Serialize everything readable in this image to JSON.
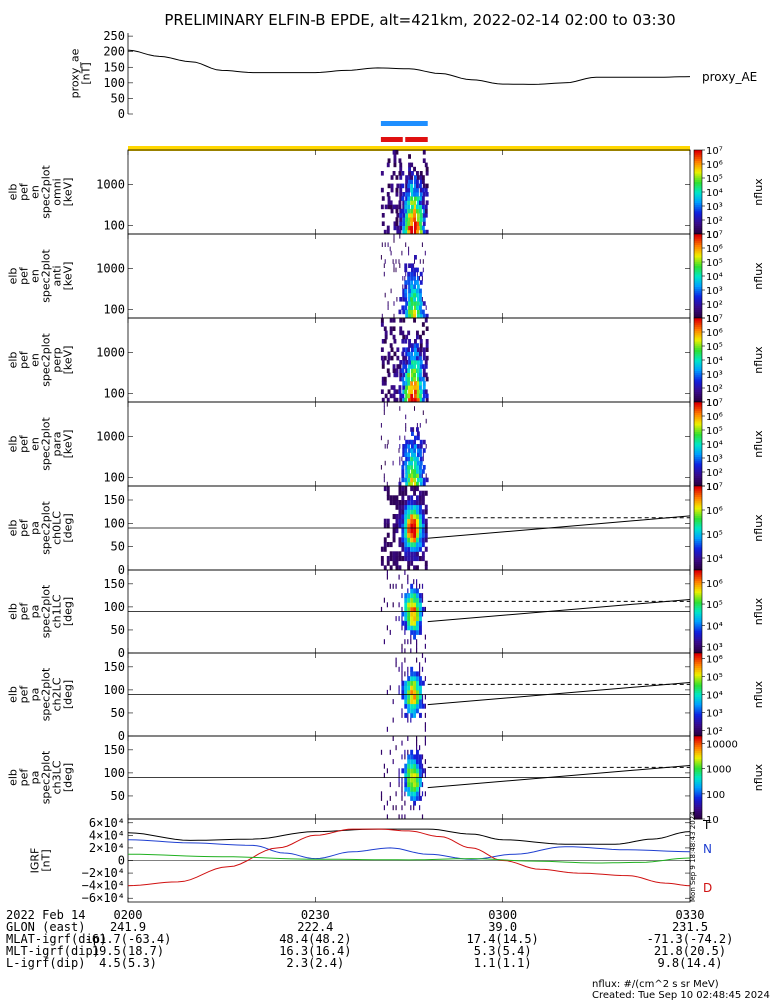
{
  "title": "PRELIMINARY ELFIN-B EPDE, alt=421km, 2022-02-14 02:00 to 03:30",
  "colors": {
    "blue_bar": "#1f8fff",
    "red_bar": "#e01010",
    "yellow_bar": "#ffd700",
    "bx": "#1f3fd0",
    "by": "#20b020",
    "bz": "#d01010"
  },
  "chart_data": [
    {
      "type": "line",
      "id": "proxy_ae",
      "ylabel": [
        "proxy_ae",
        "[nT]"
      ],
      "legend": "proxy_AE",
      "ylim": [
        0,
        260
      ],
      "yticks": [
        0,
        50,
        100,
        150,
        200,
        250
      ],
      "x_minutes": [
        0,
        5,
        10,
        15,
        20,
        25,
        30,
        35,
        40,
        45,
        50,
        55,
        60,
        65,
        70,
        75,
        80,
        85,
        90
      ],
      "values": [
        205,
        185,
        168,
        140,
        133,
        133,
        133,
        140,
        148,
        145,
        130,
        110,
        96,
        95,
        100,
        118,
        118,
        118,
        120
      ]
    },
    {
      "type": "heatmap",
      "id": "en_omni",
      "ylabel": [
        "elb",
        "pef",
        "en",
        "spec2plot",
        "omni",
        "[keV]"
      ],
      "yscale": "log",
      "yticks": [
        100,
        1000
      ],
      "yticklabels": [
        "100",
        "1000"
      ],
      "ylim": [
        63,
        6800
      ],
      "colorbar": {
        "label": "nflux",
        "scale": "log",
        "range_exp": [
          1,
          7
        ],
        "ticklabels": [
          "10",
          "10²",
          "10³",
          "10⁴",
          "10⁵",
          "10⁶",
          "10⁷"
        ]
      },
      "data_extent_min": [
        40.5,
        48
      ]
    },
    {
      "type": "heatmap",
      "id": "en_anti",
      "ylabel": [
        "elb",
        "pef",
        "en",
        "spec2plot",
        "anti",
        "[keV]"
      ],
      "yscale": "log",
      "yticks": [
        100,
        1000
      ],
      "yticklabels": [
        "100",
        "1000"
      ],
      "ylim": [
        63,
        6800
      ],
      "colorbar": {
        "label": "nflux",
        "scale": "log",
        "range_exp": [
          1,
          7
        ],
        "ticklabels": [
          "10",
          "10²",
          "10³",
          "10⁴",
          "10⁵",
          "10⁶",
          "10⁷"
        ]
      },
      "data_extent_min": [
        40.5,
        48
      ]
    },
    {
      "type": "heatmap",
      "id": "en_perp",
      "ylabel": [
        "elb",
        "pef",
        "en",
        "spec2plot",
        "perp",
        "[keV]"
      ],
      "yscale": "log",
      "yticks": [
        100,
        1000
      ],
      "yticklabels": [
        "100",
        "1000"
      ],
      "ylim": [
        63,
        6800
      ],
      "colorbar": {
        "label": "nflux",
        "scale": "log",
        "range_exp": [
          1,
          7
        ],
        "ticklabels": [
          "10",
          "10²",
          "10³",
          "10⁴",
          "10⁵",
          "10⁶",
          "10⁷"
        ]
      },
      "data_extent_min": [
        40.5,
        48
      ]
    },
    {
      "type": "heatmap",
      "id": "en_para",
      "ylabel": [
        "elb",
        "pef",
        "en",
        "spec2plot",
        "para",
        "[keV]"
      ],
      "yscale": "log",
      "yticks": [
        100,
        1000
      ],
      "yticklabels": [
        "100",
        "1000"
      ],
      "ylim": [
        63,
        6800
      ],
      "colorbar": {
        "label": "nflux",
        "scale": "log",
        "range_exp": [
          1,
          7
        ],
        "ticklabels": [
          "10",
          "10²",
          "10³",
          "10⁴",
          "10⁵",
          "10⁶",
          "10⁷"
        ]
      },
      "data_extent_min": [
        40.5,
        48
      ]
    },
    {
      "type": "heatmap",
      "id": "pa_ch0",
      "ylabel": [
        "elb",
        "pef",
        "pa",
        "spec2plot",
        "ch0LC",
        "[deg]"
      ],
      "ylim": [
        0,
        180
      ],
      "yticks": [
        0,
        50,
        100,
        150
      ],
      "hline": 90,
      "colorbar": {
        "label": "nflux",
        "scale": "log",
        "range_exp": [
          3.5,
          7
        ],
        "ticklabels": [
          "10⁴",
          "10⁵",
          "10⁶",
          "10⁷"
        ],
        "tick_exp": [
          4,
          5,
          6,
          7
        ]
      },
      "data_extent_min": [
        40.5,
        48
      ],
      "loss_cone_solid": [
        [
          48,
          68
        ],
        [
          90,
          116
        ]
      ],
      "loss_cone_dashed": [
        [
          48,
          112
        ],
        [
          90,
          112
        ]
      ]
    },
    {
      "type": "heatmap",
      "id": "pa_ch1",
      "ylabel": [
        "elb",
        "pef",
        "pa",
        "spec2plot",
        "ch1LC",
        "[deg]"
      ],
      "ylim": [
        0,
        180
      ],
      "yticks": [
        0,
        50,
        100,
        150
      ],
      "hline": 90,
      "colorbar": {
        "label": "nflux",
        "scale": "log",
        "range_exp": [
          2.7,
          6.6
        ],
        "ticklabels": [
          "10³",
          "10⁴",
          "10⁵",
          "10⁶"
        ],
        "tick_exp": [
          3,
          4,
          5,
          6
        ]
      },
      "data_extent_min": [
        40.5,
        48
      ],
      "loss_cone_solid": [
        [
          48,
          68
        ],
        [
          90,
          116
        ]
      ],
      "loss_cone_dashed": [
        [
          48,
          112
        ],
        [
          90,
          112
        ]
      ]
    },
    {
      "type": "heatmap",
      "id": "pa_ch2",
      "ylabel": [
        "elb",
        "pef",
        "pa",
        "spec2plot",
        "ch2LC",
        "[deg]"
      ],
      "ylim": [
        0,
        180
      ],
      "yticks": [
        0,
        50,
        100,
        150
      ],
      "hline": 90,
      "colorbar": {
        "label": "nflux",
        "scale": "log",
        "range_exp": [
          1.7,
          6.3
        ],
        "ticklabels": [
          "10²",
          "10³",
          "10⁴",
          "10⁵",
          "10⁶"
        ],
        "tick_exp": [
          2,
          3,
          4,
          5,
          6
        ]
      },
      "data_extent_min": [
        40.5,
        48
      ],
      "loss_cone_solid": [
        [
          48,
          68
        ],
        [
          90,
          116
        ]
      ],
      "loss_cone_dashed": [
        [
          48,
          112
        ],
        [
          90,
          112
        ]
      ]
    },
    {
      "type": "heatmap",
      "id": "pa_ch3",
      "ylabel": [
        "elb",
        "pef",
        "pa",
        "spec2plot",
        "ch3LC",
        "[deg]"
      ],
      "ylim": [
        0,
        180
      ],
      "yticks": [
        50,
        100,
        150
      ],
      "hline": 90,
      "colorbar": {
        "label": "nflux",
        "scale": "log",
        "range_exp": [
          1,
          4.3
        ],
        "ticklabels": [
          "10",
          "100",
          "1000",
          "10000"
        ],
        "tick_exp": [
          1,
          2,
          3,
          4
        ]
      },
      "data_extent_min": [
        40.5,
        48
      ],
      "loss_cone_solid": [
        [
          48,
          68
        ],
        [
          90,
          116
        ]
      ],
      "loss_cone_dashed": [
        [
          48,
          112
        ],
        [
          90,
          112
        ]
      ]
    },
    {
      "type": "line",
      "id": "igrf",
      "ylabel": [
        "IGRF",
        "[nT]"
      ],
      "ylim": [
        -66000,
        66000
      ],
      "yticks": [
        -60000,
        -40000,
        -20000,
        0,
        20000,
        40000,
        60000
      ],
      "yticklabels": [
        "−6×10⁴",
        "−4×10⁴",
        "−2×10⁴",
        "0",
        "2×10⁴",
        "4×10⁴",
        "6×10⁴"
      ],
      "series": [
        {
          "name": "T",
          "color": "#000000",
          "x_minutes": [
            0,
            10,
            20,
            30,
            40,
            48,
            55,
            60,
            70,
            78,
            84,
            90
          ],
          "values": [
            44000,
            32000,
            34000,
            46000,
            50000,
            50000,
            42000,
            33000,
            26000,
            26000,
            34000,
            46000
          ]
        },
        {
          "name": "N",
          "color": "#1f3fd0",
          "x_minutes": [
            0,
            10,
            20,
            25,
            30,
            36,
            42,
            48,
            55,
            62,
            70,
            80,
            90
          ],
          "values": [
            33000,
            28000,
            24000,
            12000,
            3000,
            14000,
            20000,
            10000,
            2000,
            10000,
            22000,
            17000,
            14000
          ]
        },
        {
          "name": "D",
          "color": "#d01010",
          "x_minutes": [
            0,
            8,
            16,
            24,
            30,
            36,
            40,
            45,
            50,
            55,
            60,
            66,
            72,
            80,
            86,
            90
          ],
          "values": [
            -40000,
            -34000,
            -10000,
            20000,
            40000,
            50000,
            50000,
            47000,
            38000,
            20000,
            0,
            -14000,
            -20000,
            -24000,
            -36000,
            -40000
          ]
        },
        {
          "name": "",
          "color": "#20b020",
          "x_minutes": [
            0,
            15,
            30,
            45,
            55,
            65,
            75,
            82,
            90
          ],
          "values": [
            10000,
            6000,
            2000,
            1000,
            3000,
            -1000,
            -4000,
            -3000,
            4000
          ]
        }
      ]
    }
  ],
  "xaxis": {
    "range_min": [
      0,
      90
    ],
    "tick_minutes": [
      0,
      30,
      60,
      90
    ],
    "rows": [
      {
        "label": "2022 Feb 14",
        "vals": [
          "0200",
          "0230",
          "0300",
          "0330"
        ]
      },
      {
        "label": "GLON (east)",
        "vals": [
          "241.9",
          "222.4",
          "39.0",
          "231.5"
        ]
      },
      {
        "label": "MLAT-igrf(dip)",
        "vals": [
          "-61.7(-63.4)",
          "48.4(48.2)",
          "17.4(14.5)",
          "-71.3(-74.2)"
        ]
      },
      {
        "label": "MLT-igrf(dip)",
        "vals": [
          "19.5(18.7)",
          "16.3(16.4)",
          "5.3(5.4)",
          "21.8(20.5)"
        ]
      },
      {
        "label": "L-igrf(dip)",
        "vals": [
          "4.5(5.3)",
          "2.3(2.4)",
          "1.1(1.1)",
          "9.8(14.4)"
        ]
      }
    ]
  },
  "footer": {
    "units": "nflux: #/(cm^2 s sr MeV)",
    "created": "Created: Tue Sep 10 02:48:45 2024",
    "side_stamp": "Mon Sep  9 18:48:43 2024"
  }
}
